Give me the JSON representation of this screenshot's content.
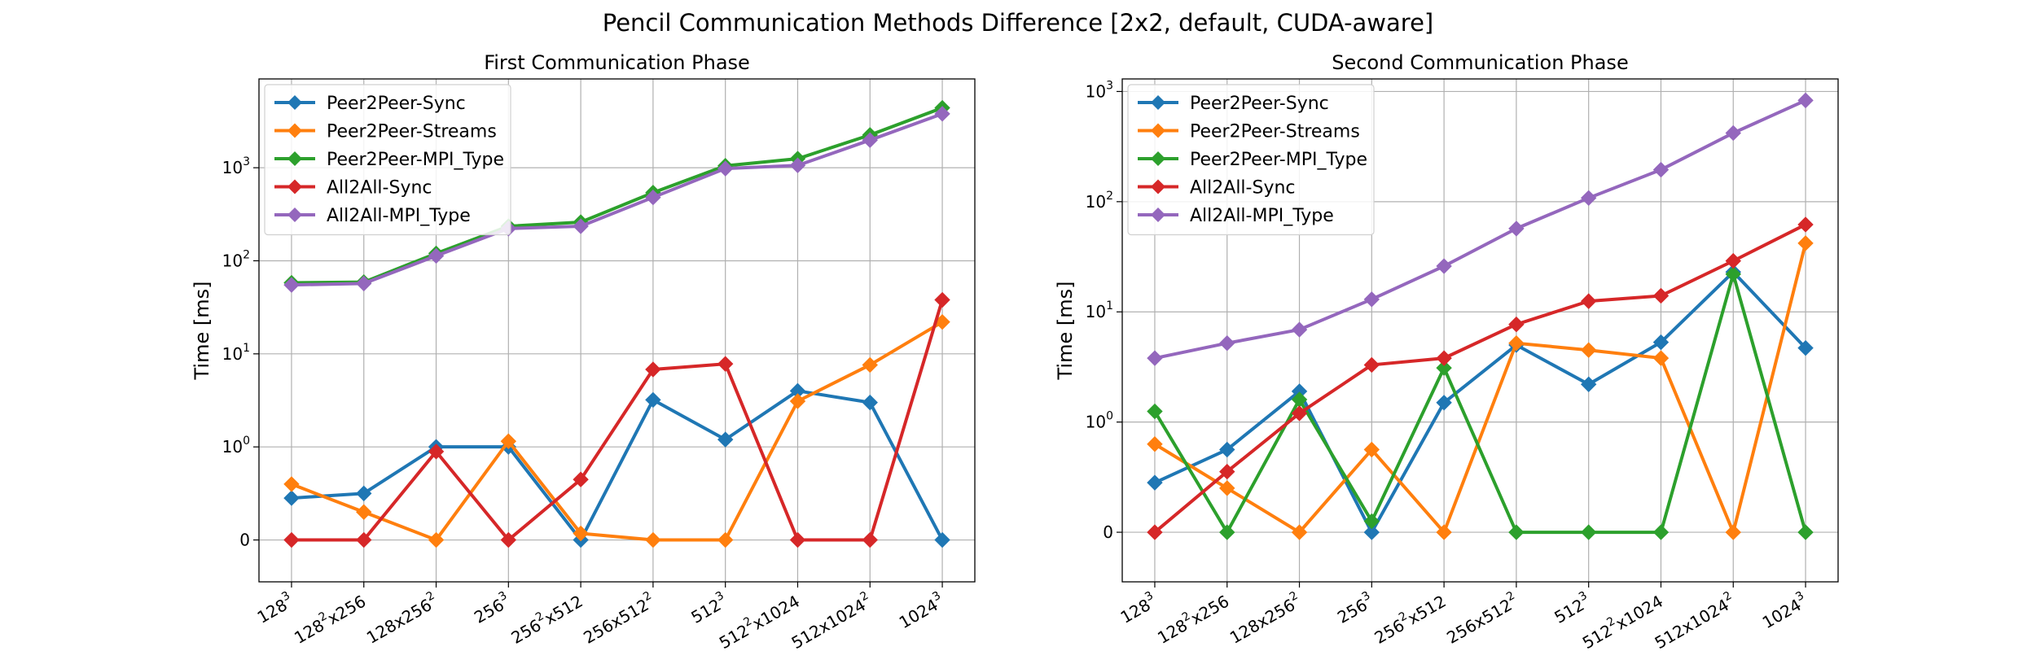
{
  "figure": {
    "title": "Pencil Communication Methods Difference [2x2, default, CUDA-aware]"
  },
  "chart_data": [
    {
      "type": "line",
      "title": "First Communication Phase",
      "xlabel": "",
      "ylabel": "Time [ms]",
      "yscale": "symlog",
      "ylim": [
        -0.45,
        9000
      ],
      "yticks": [
        {
          "value": 0,
          "base": "0",
          "exp": ""
        },
        {
          "value": 1,
          "base": "10",
          "exp": "0"
        },
        {
          "value": 10,
          "base": "10",
          "exp": "1"
        },
        {
          "value": 100,
          "base": "10",
          "exp": "2"
        },
        {
          "value": 1000,
          "base": "10",
          "exp": "3"
        }
      ],
      "grid": true,
      "legend": "upper left",
      "categories": [
        [
          {
            "t": "128"
          },
          {
            "t": "3",
            "sup": true
          }
        ],
        [
          {
            "t": "128"
          },
          {
            "t": "2",
            "sup": true
          },
          {
            "t": "x256"
          }
        ],
        [
          {
            "t": "128x256"
          },
          {
            "t": "2",
            "sup": true
          }
        ],
        [
          {
            "t": "256"
          },
          {
            "t": "3",
            "sup": true
          }
        ],
        [
          {
            "t": "256"
          },
          {
            "t": "2",
            "sup": true
          },
          {
            "t": "x512"
          }
        ],
        [
          {
            "t": "256x512"
          },
          {
            "t": "2",
            "sup": true
          }
        ],
        [
          {
            "t": "512"
          },
          {
            "t": "3",
            "sup": true
          }
        ],
        [
          {
            "t": "512"
          },
          {
            "t": "2",
            "sup": true
          },
          {
            "t": "x1024"
          }
        ],
        [
          {
            "t": "512x1024"
          },
          {
            "t": "2",
            "sup": true
          }
        ],
        [
          {
            "t": "1024"
          },
          {
            "t": "3",
            "sup": true
          }
        ]
      ],
      "series": [
        {
          "name": "Peer2Peer-Sync",
          "color": "#1f77b4",
          "values": [
            0.45,
            0.5,
            1.0,
            1.0,
            0,
            3.2,
            1.2,
            4.0,
            3.0,
            0
          ]
        },
        {
          "name": "Peer2Peer-Streams",
          "color": "#ff7f0e",
          "values": [
            0.6,
            0.3,
            0,
            1.15,
            0.07,
            0,
            0,
            3.1,
            7.6,
            22
          ]
        },
        {
          "name": "Peer2Peer-MPI_Type",
          "color": "#2ca02c",
          "values": [
            58,
            59,
            120,
            235,
            260,
            540,
            1050,
            1250,
            2250,
            4400
          ]
        },
        {
          "name": "All2All-Sync",
          "color": "#d62728",
          "values": [
            0,
            0,
            0.95,
            0,
            0.65,
            6.8,
            7.8,
            0,
            0,
            38
          ]
        },
        {
          "name": "All2All-MPI_Type",
          "color": "#9467bd",
          "values": [
            55,
            57,
            113,
            222,
            235,
            480,
            980,
            1060,
            1980,
            3800
          ]
        }
      ]
    },
    {
      "type": "line",
      "title": "Second Communication Phase",
      "xlabel": "",
      "ylabel": "Time [ms]",
      "yscale": "symlog",
      "ylim": [
        -0.45,
        1300
      ],
      "yticks": [
        {
          "value": 0,
          "base": "0",
          "exp": ""
        },
        {
          "value": 1,
          "base": "10",
          "exp": "0"
        },
        {
          "value": 10,
          "base": "10",
          "exp": "1"
        },
        {
          "value": 100,
          "base": "10",
          "exp": "2"
        },
        {
          "value": 1000,
          "base": "10",
          "exp": "3"
        }
      ],
      "grid": true,
      "legend": "upper left",
      "categories": [
        [
          {
            "t": "128"
          },
          {
            "t": "3",
            "sup": true
          }
        ],
        [
          {
            "t": "128"
          },
          {
            "t": "2",
            "sup": true
          },
          {
            "t": "x256"
          }
        ],
        [
          {
            "t": "128x256"
          },
          {
            "t": "2",
            "sup": true
          }
        ],
        [
          {
            "t": "256"
          },
          {
            "t": "3",
            "sup": true
          }
        ],
        [
          {
            "t": "256"
          },
          {
            "t": "2",
            "sup": true
          },
          {
            "t": "x512"
          }
        ],
        [
          {
            "t": "256x512"
          },
          {
            "t": "2",
            "sup": true
          }
        ],
        [
          {
            "t": "512"
          },
          {
            "t": "3",
            "sup": true
          }
        ],
        [
          {
            "t": "512"
          },
          {
            "t": "2",
            "sup": true
          },
          {
            "t": "x1024"
          }
        ],
        [
          {
            "t": "512x1024"
          },
          {
            "t": "2",
            "sup": true
          }
        ],
        [
          {
            "t": "1024"
          },
          {
            "t": "3",
            "sup": true
          }
        ]
      ],
      "series": [
        {
          "name": "Peer2Peer-Sync",
          "color": "#1f77b4",
          "values": [
            0.45,
            0.75,
            1.9,
            0,
            1.5,
            5.0,
            2.2,
            5.3,
            23,
            4.7
          ]
        },
        {
          "name": "Peer2Peer-Streams",
          "color": "#ff7f0e",
          "values": [
            0.8,
            0.4,
            0,
            0.75,
            0,
            5.2,
            4.5,
            3.8,
            0,
            42
          ]
        },
        {
          "name": "Peer2Peer-MPI_Type",
          "color": "#2ca02c",
          "values": [
            1.25,
            0,
            1.6,
            0.1,
            3.1,
            0,
            0,
            0,
            22,
            0
          ]
        },
        {
          "name": "All2All-Sync",
          "color": "#d62728",
          "values": [
            0,
            0.55,
            1.2,
            3.3,
            3.8,
            7.7,
            12.5,
            14,
            29,
            62
          ]
        },
        {
          "name": "All2All-MPI_Type",
          "color": "#9467bd",
          "values": [
            3.8,
            5.2,
            6.9,
            13,
            26,
            57,
            108,
            195,
            420,
            830
          ]
        }
      ]
    }
  ]
}
